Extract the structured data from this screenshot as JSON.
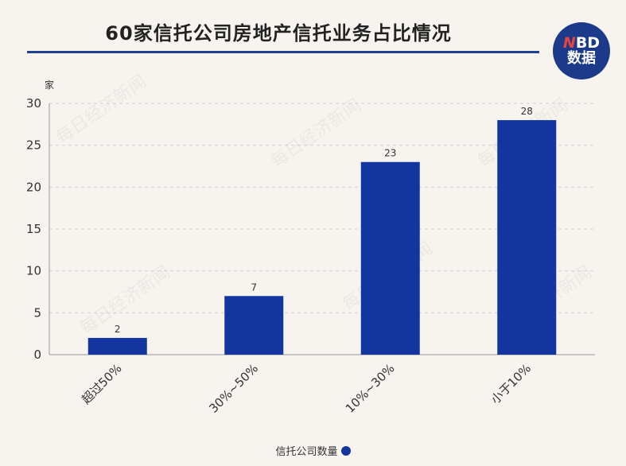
{
  "header": {
    "title": "60家信托公司房地产信托业务占比情况",
    "logo_line1_a": "N",
    "logo_line1_b": "BD",
    "logo_line2": "数据"
  },
  "watermark": "每日经济新闻",
  "colors": {
    "bar": "#1235a0",
    "title_rule": "#1f3f8f",
    "logo_bg": "#1d3a8a",
    "background": "#f7f4f0"
  },
  "chart_data": {
    "type": "bar",
    "title": "60家信托公司房地产信托业务占比情况",
    "ylabel": "家",
    "xlabel": "",
    "categories": [
      "超过50%",
      "30%~50%",
      "10%~30%",
      "小于10%"
    ],
    "series": [
      {
        "name": "信托公司数量",
        "values": [
          2,
          7,
          23,
          28
        ]
      }
    ],
    "ylim": [
      0,
      30
    ],
    "yticks": [
      0,
      5,
      10,
      15,
      20,
      25,
      30
    ],
    "grid": true,
    "legend": "bottom"
  }
}
